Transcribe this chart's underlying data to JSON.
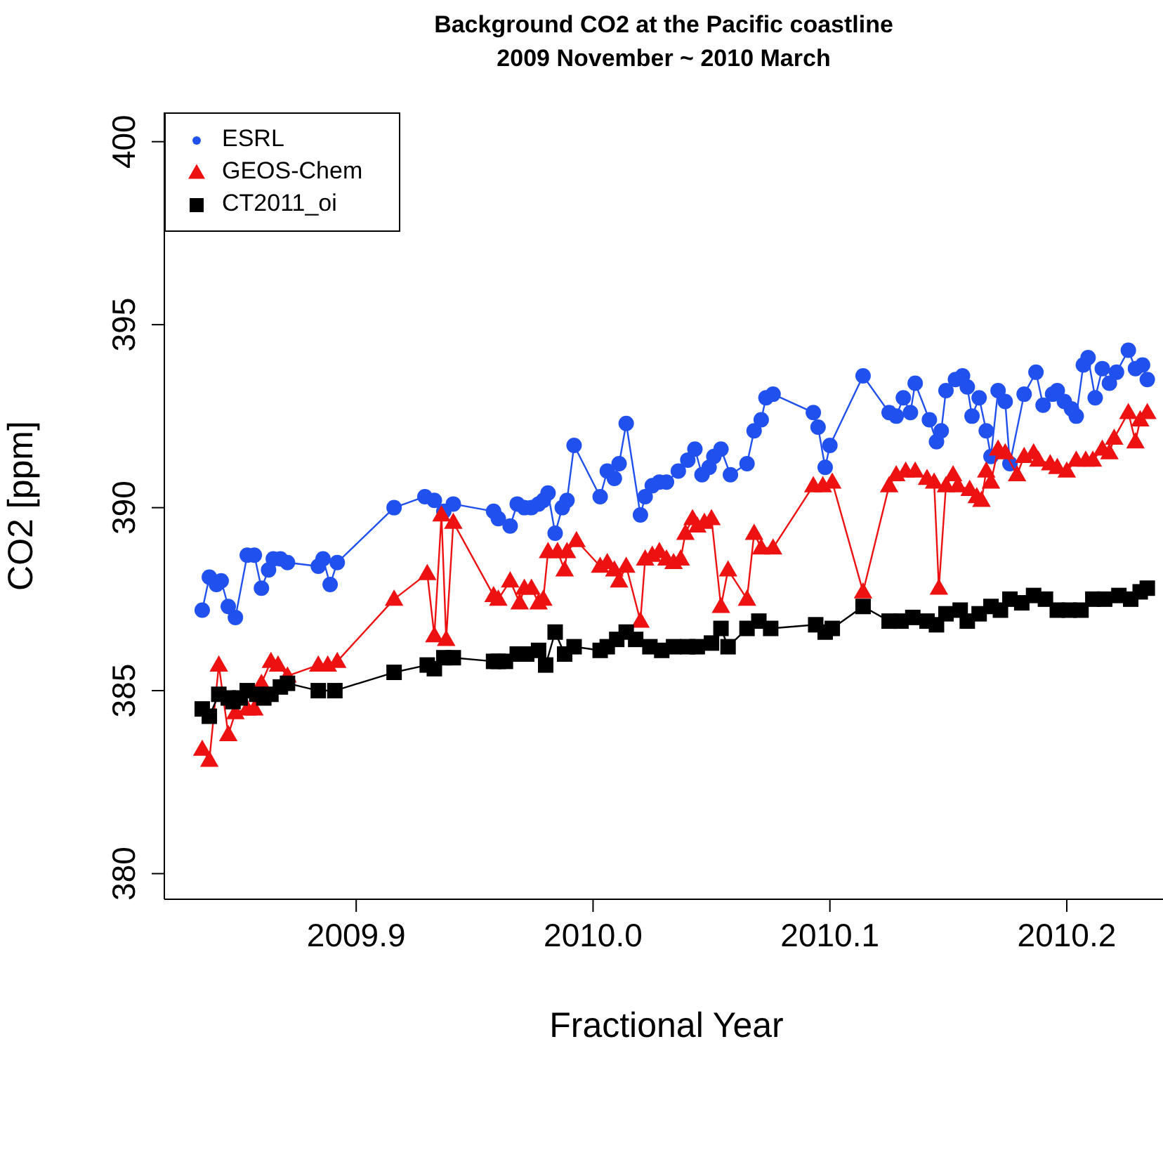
{
  "chart_data": {
    "type": "line",
    "title": "Background CO2 at the Pacific coastline",
    "subtitle": "2009 November ~ 2010 March",
    "xlabel": "Fractional Year",
    "ylabel": "CO2 [ppm]",
    "xlim": [
      2009.819,
      2010.243
    ],
    "xticks": [
      2009.9,
      {
        "value": 2010,
        "label": "2010.0"
      },
      2010.1,
      2010.2
    ],
    "ylim": [
      379.3,
      400.8
    ],
    "yticks": [
      380,
      385,
      390,
      395,
      400
    ],
    "legend": "top left",
    "series": [
      {
        "name": "ESRL",
        "color": "#2050ee",
        "marker": "circle",
        "x": [
          2009.835,
          2009.838,
          2009.841,
          2009.843,
          2009.846,
          2009.849,
          2009.854,
          2009.857,
          2009.86,
          2009.863,
          2009.865,
          2009.868,
          2009.871,
          2009.884,
          2009.886,
          2009.889,
          2009.892,
          2009.916,
          2009.929,
          2009.933,
          2009.937,
          2009.941,
          2009.958,
          2009.96,
          2009.965,
          2009.968,
          2009.971,
          2009.974,
          2009.977,
          2009.979,
          2009.981,
          2009.984,
          2009.987,
          2009.989,
          2009.992,
          2010.003,
          2010.006,
          2010.009,
          2010.011,
          2010.014,
          2010.02,
          2010.022,
          2010.025,
          2010.028,
          2010.031,
          2010.036,
          2010.04,
          2010.043,
          2010.046,
          2010.049,
          2010.051,
          2010.054,
          2010.058,
          2010.065,
          2010.068,
          2010.071,
          2010.073,
          2010.076,
          2010.093,
          2010.095,
          2010.098,
          2010.1,
          2010.114,
          2010.125,
          2010.128,
          2010.131,
          2010.134,
          2010.136,
          2010.142,
          2010.145,
          2010.147,
          2010.149,
          2010.153,
          2010.156,
          2010.158,
          2010.16,
          2010.163,
          2010.166,
          2010.168,
          2010.171,
          2010.174,
          2010.176,
          2010.182,
          2010.187,
          2010.19,
          2010.194,
          2010.196,
          2010.199,
          2010.202,
          2010.204,
          2010.207,
          2010.209,
          2010.212,
          2010.215,
          2010.218,
          2010.221,
          2010.226,
          2010.229,
          2010.232,
          2010.234
        ],
        "values": [
          387.2,
          388.1,
          387.9,
          388.0,
          387.3,
          387.0,
          388.7,
          388.7,
          387.8,
          388.3,
          388.6,
          388.6,
          388.5,
          388.4,
          388.6,
          387.9,
          388.5,
          390.0,
          390.3,
          390.2,
          389.9,
          390.1,
          389.9,
          389.7,
          389.5,
          390.1,
          390.0,
          390.0,
          390.1,
          390.2,
          390.4,
          389.3,
          390.0,
          390.2,
          391.7,
          390.3,
          391.0,
          390.8,
          391.2,
          392.3,
          389.8,
          390.3,
          390.6,
          390.7,
          390.7,
          391.0,
          391.3,
          391.6,
          390.9,
          391.1,
          391.4,
          391.6,
          390.9,
          391.2,
          392.1,
          392.4,
          393.0,
          393.1,
          392.6,
          392.2,
          391.1,
          391.7,
          393.6,
          392.6,
          392.5,
          393.0,
          392.6,
          393.4,
          392.4,
          391.8,
          392.1,
          393.2,
          393.5,
          393.6,
          393.3,
          392.5,
          393.0,
          392.1,
          391.4,
          393.2,
          392.9,
          391.2,
          393.1,
          393.7,
          392.8,
          393.1,
          393.2,
          392.9,
          392.7,
          392.5,
          393.9,
          394.1,
          393.0,
          393.8,
          393.4,
          393.7,
          394.3,
          393.8,
          393.9,
          393.5
        ]
      },
      {
        "name": "GEOS-Chem",
        "color": "#ee1111",
        "marker": "triangle",
        "x": [
          2009.835,
          2009.838,
          2009.842,
          2009.846,
          2009.849,
          2009.854,
          2009.857,
          2009.86,
          2009.864,
          2009.867,
          2009.871,
          2009.884,
          2009.888,
          2009.892,
          2009.916,
          2009.93,
          2009.933,
          2009.936,
          2009.938,
          2009.941,
          2009.958,
          2009.96,
          2009.965,
          2009.969,
          2009.971,
          2009.974,
          2009.977,
          2009.979,
          2009.981,
          2009.985,
          2009.988,
          2009.989,
          2009.993,
          2010.003,
          2010.006,
          2010.009,
          2010.011,
          2010.014,
          2010.02,
          2010.022,
          2010.025,
          2010.028,
          2010.031,
          2010.034,
          2010.037,
          2010.039,
          2010.042,
          2010.044,
          2010.047,
          2010.05,
          2010.054,
          2010.057,
          2010.065,
          2010.068,
          2010.071,
          2010.076,
          2010.093,
          2010.097,
          2010.101,
          2010.114,
          2010.125,
          2010.128,
          2010.132,
          2010.136,
          2010.141,
          2010.144,
          2010.146,
          2010.149,
          2010.152,
          2010.154,
          2010.159,
          2010.162,
          2010.164,
          2010.166,
          2010.168,
          2010.171,
          2010.174,
          2010.179,
          2010.182,
          2010.186,
          2010.188,
          2010.193,
          2010.196,
          2010.2,
          2010.204,
          2010.208,
          2010.211,
          2010.215,
          2010.218,
          2010.22,
          2010.226,
          2010.229,
          2010.231,
          2010.234
        ],
        "values": [
          383.4,
          383.1,
          385.7,
          383.8,
          384.4,
          384.5,
          384.5,
          385.2,
          385.8,
          385.7,
          385.4,
          385.7,
          385.7,
          385.8,
          387.5,
          388.2,
          386.5,
          389.8,
          386.4,
          389.6,
          387.6,
          387.5,
          388.0,
          387.4,
          387.8,
          387.8,
          387.4,
          387.5,
          388.8,
          388.8,
          388.3,
          388.8,
          389.1,
          388.4,
          388.5,
          388.3,
          388.0,
          388.4,
          386.9,
          388.6,
          388.7,
          388.8,
          388.6,
          388.5,
          388.6,
          389.3,
          389.7,
          389.5,
          389.6,
          389.7,
          387.3,
          388.3,
          387.5,
          389.3,
          388.9,
          388.9,
          390.6,
          390.6,
          390.7,
          387.7,
          390.6,
          390.9,
          391.0,
          391.0,
          390.8,
          390.7,
          387.8,
          390.6,
          390.9,
          390.6,
          390.5,
          390.3,
          390.2,
          391.0,
          390.7,
          391.6,
          391.5,
          390.9,
          391.4,
          391.5,
          391.3,
          391.2,
          391.1,
          391.0,
          391.3,
          391.3,
          391.3,
          391.6,
          391.5,
          391.9,
          392.6,
          391.8,
          392.4,
          392.6
        ]
      },
      {
        "name": "CT2011_oi",
        "color": "#000000",
        "marker": "square",
        "x": [
          2009.835,
          2009.838,
          2009.842,
          2009.846,
          2009.848,
          2009.851,
          2009.854,
          2009.858,
          2009.861,
          2009.864,
          2009.868,
          2009.871,
          2009.884,
          2009.891,
          2009.916,
          2009.93,
          2009.933,
          2009.937,
          2009.941,
          2009.958,
          2009.96,
          2009.963,
          2009.968,
          2009.972,
          2009.977,
          2009.98,
          2009.984,
          2009.988,
          2009.992,
          2010.003,
          2010.006,
          2010.01,
          2010.014,
          2010.018,
          2010.024,
          2010.029,
          2010.034,
          2010.04,
          2010.044,
          2010.05,
          2010.054,
          2010.057,
          2010.065,
          2010.07,
          2010.075,
          2010.094,
          2010.098,
          2010.101,
          2010.114,
          2010.125,
          2010.13,
          2010.135,
          2010.141,
          2010.145,
          2010.149,
          2010.155,
          2010.158,
          2010.163,
          2010.168,
          2010.172,
          2010.176,
          2010.181,
          2010.186,
          2010.191,
          2010.196,
          2010.201,
          2010.206,
          2010.211,
          2010.216,
          2010.222,
          2010.227,
          2010.231,
          2010.234
        ],
        "values": [
          384.5,
          384.3,
          384.9,
          384.8,
          384.7,
          384.8,
          385.0,
          384.9,
          384.8,
          384.9,
          385.1,
          385.2,
          385.0,
          385.0,
          385.5,
          385.7,
          385.6,
          385.9,
          385.9,
          385.8,
          385.8,
          385.8,
          386.0,
          386.0,
          386.1,
          385.7,
          386.6,
          386.0,
          386.2,
          386.1,
          386.2,
          386.4,
          386.6,
          386.4,
          386.2,
          386.1,
          386.2,
          386.2,
          386.2,
          386.3,
          386.7,
          386.2,
          386.7,
          386.9,
          386.7,
          386.8,
          386.6,
          386.7,
          387.3,
          386.9,
          386.9,
          387.0,
          386.9,
          386.8,
          387.1,
          387.2,
          386.9,
          387.1,
          387.3,
          387.2,
          387.5,
          387.4,
          387.6,
          387.5,
          387.2,
          387.2,
          387.2,
          387.5,
          387.5,
          387.6,
          387.5,
          387.7,
          387.8
        ]
      }
    ]
  }
}
